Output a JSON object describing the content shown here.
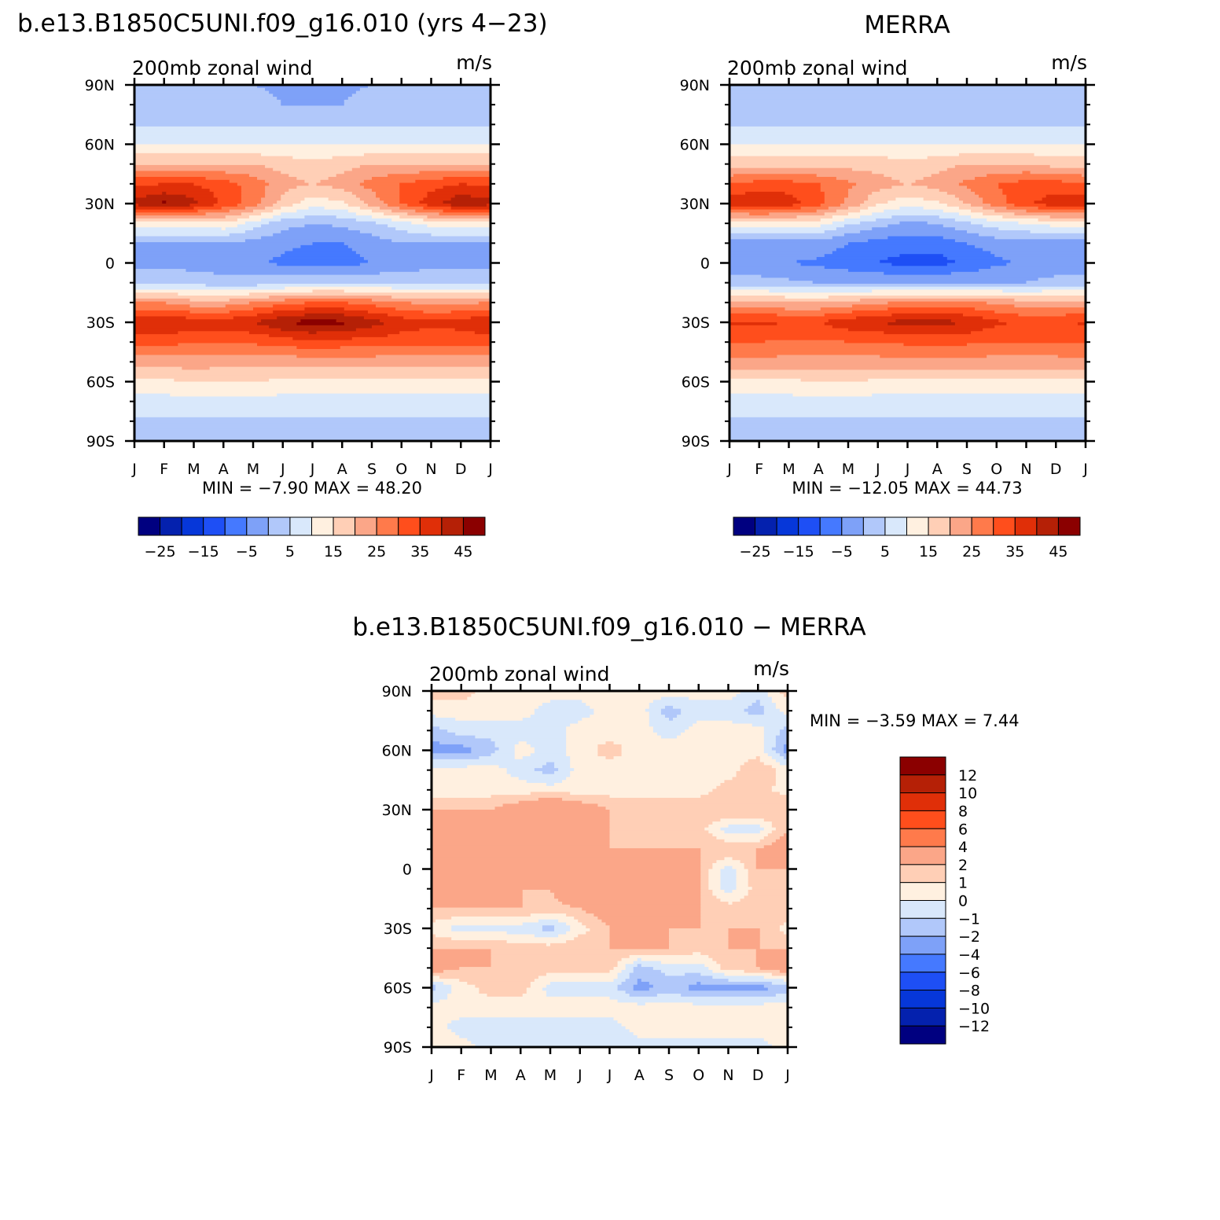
{
  "chart_data": [
    {
      "type": "heatmap",
      "title": "b.e13.B1850C5UNI.f09_g16.010 (yrs 4−23)",
      "left_label": "200mb zonal wind",
      "right_label": "m/s",
      "x_ticks": [
        "J",
        "F",
        "M",
        "A",
        "M",
        "J",
        "J",
        "A",
        "S",
        "O",
        "N",
        "D",
        "J"
      ],
      "y_ticks": [
        "90N",
        "60N",
        "30N",
        "0",
        "30S",
        "60S",
        "90S"
      ],
      "y_range": [
        -90,
        90
      ],
      "min_max_text": "MIN =    −7.90  MAX =    48.20",
      "levels": [
        -30,
        -25,
        -20,
        -15,
        -10,
        -5,
        0,
        5,
        10,
        15,
        20,
        25,
        30,
        35,
        40,
        45
      ],
      "colorbar_labels": [
        "−25",
        "−15",
        "−5",
        "5",
        "15",
        "25",
        "35",
        "45"
      ],
      "colors": [
        "#000080",
        "#0421ae",
        "#0637d9",
        "#1e4ff5",
        "#4579ff",
        "#7ea1f8",
        "#b1c8fa",
        "#d9e8fb",
        "#fff0e0",
        "#ffcfb6",
        "#fba688",
        "#ff7a4b",
        "#ff4e1c",
        "#e02f08",
        "#b52006",
        "#8b0000"
      ],
      "profile_lat": [
        -90,
        -80,
        -70,
        -60,
        -50,
        -40,
        -30,
        -20,
        -10,
        0,
        10,
        20,
        30,
        40,
        50,
        60,
        70,
        80,
        90
      ],
      "profiles": [
        [
          0,
          4,
          8,
          14,
          22,
          32,
          40,
          25,
          4,
          -2,
          0,
          12,
          42,
          34,
          20,
          10,
          4,
          2,
          0
        ],
        [
          0,
          4,
          8,
          14,
          22,
          32,
          40,
          25,
          4,
          -2,
          0,
          12,
          46,
          35,
          20,
          10,
          4,
          2,
          0
        ],
        [
          0,
          4,
          8,
          15,
          23,
          30,
          38,
          22,
          3,
          -2,
          0,
          12,
          42,
          35,
          20,
          10,
          4,
          2,
          0
        ],
        [
          0,
          4,
          8,
          15,
          22,
          30,
          38,
          22,
          2,
          -3,
          0,
          14,
          34,
          32,
          20,
          10,
          4,
          2,
          0
        ],
        [
          0,
          4,
          8,
          15,
          22,
          31,
          40,
          25,
          2,
          -4,
          -2,
          8,
          28,
          28,
          20,
          10,
          4,
          2,
          0
        ],
        [
          0,
          4,
          8,
          14,
          22,
          32,
          45,
          28,
          3,
          -6,
          -4,
          2,
          18,
          22,
          18,
          10,
          4,
          0,
          -1
        ],
        [
          0,
          4,
          8,
          14,
          22,
          34,
          47,
          30,
          4,
          -7,
          -5,
          0,
          12,
          20,
          16,
          10,
          4,
          0,
          -1
        ],
        [
          0,
          4,
          8,
          14,
          22,
          33,
          46,
          30,
          4,
          -7,
          -5,
          1,
          14,
          22,
          18,
          10,
          4,
          0,
          -1
        ],
        [
          0,
          4,
          8,
          14,
          22,
          33,
          42,
          28,
          4,
          -5,
          -3,
          4,
          22,
          27,
          20,
          10,
          4,
          2,
          0
        ],
        [
          0,
          4,
          8,
          14,
          22,
          32,
          38,
          25,
          4,
          -3,
          0,
          8,
          30,
          30,
          20,
          10,
          4,
          2,
          0
        ],
        [
          0,
          4,
          8,
          14,
          22,
          32,
          36,
          24,
          4,
          -2,
          0,
          12,
          38,
          33,
          20,
          10,
          4,
          2,
          0
        ],
        [
          0,
          4,
          8,
          14,
          22,
          32,
          37,
          24,
          4,
          -2,
          0,
          12,
          44,
          35,
          20,
          10,
          4,
          2,
          0
        ],
        [
          0,
          4,
          8,
          14,
          22,
          32,
          40,
          25,
          4,
          -2,
          0,
          12,
          42,
          34,
          20,
          10,
          4,
          2,
          0
        ]
      ]
    },
    {
      "type": "heatmap",
      "title": "MERRA",
      "left_label": "200mb zonal wind",
      "right_label": "m/s",
      "x_ticks": [
        "J",
        "F",
        "M",
        "A",
        "M",
        "J",
        "J",
        "A",
        "S",
        "O",
        "N",
        "D",
        "J"
      ],
      "y_ticks": [
        "90N",
        "60N",
        "30N",
        "0",
        "30S",
        "60S",
        "90S"
      ],
      "y_range": [
        -90,
        90
      ],
      "min_max_text": "MIN = −12.05  MAX =    44.73",
      "levels": [
        -30,
        -25,
        -20,
        -15,
        -10,
        -5,
        0,
        5,
        10,
        15,
        20,
        25,
        30,
        35,
        40,
        45
      ],
      "colorbar_labels": [
        "−25",
        "−15",
        "−5",
        "5",
        "15",
        "25",
        "35",
        "45"
      ],
      "colors": [
        "#000080",
        "#0421ae",
        "#0637d9",
        "#1e4ff5",
        "#4579ff",
        "#7ea1f8",
        "#b1c8fa",
        "#d9e8fb",
        "#fff0e0",
        "#ffcfb6",
        "#fba688",
        "#ff7a4b",
        "#ff4e1c",
        "#e02f08",
        "#b52006",
        "#8b0000"
      ],
      "profile_lat": [
        -90,
        -80,
        -70,
        -60,
        -50,
        -40,
        -30,
        -20,
        -10,
        0,
        10,
        20,
        30,
        40,
        50,
        60,
        70,
        80,
        90
      ],
      "profiles": [
        [
          0,
          4,
          8,
          14,
          24,
          30,
          36,
          22,
          2,
          -4,
          -2,
          12,
          38,
          30,
          18,
          10,
          4,
          2,
          0
        ],
        [
          0,
          4,
          8,
          14,
          24,
          30,
          36,
          22,
          2,
          -4,
          -2,
          12,
          40,
          32,
          18,
          10,
          4,
          2,
          0
        ],
        [
          0,
          4,
          8,
          14,
          23,
          29,
          35,
          20,
          1,
          -5,
          -2,
          12,
          38,
          32,
          18,
          10,
          4,
          2,
          0
        ],
        [
          0,
          4,
          8,
          15,
          23,
          29,
          35,
          20,
          0,
          -6,
          -2,
          12,
          32,
          30,
          18,
          10,
          4,
          2,
          0
        ],
        [
          0,
          4,
          8,
          15,
          23,
          30,
          38,
          22,
          0,
          -8,
          -5,
          6,
          24,
          26,
          18,
          10,
          4,
          2,
          0
        ],
        [
          0,
          4,
          8,
          14,
          23,
          30,
          40,
          24,
          0,
          -10,
          -7,
          2,
          16,
          22,
          18,
          10,
          4,
          2,
          0
        ],
        [
          0,
          4,
          8,
          14,
          24,
          31,
          42,
          26,
          0,
          -12,
          -8,
          -1,
          12,
          20,
          16,
          10,
          4,
          2,
          0
        ],
        [
          0,
          4,
          8,
          14,
          24,
          31,
          42,
          26,
          0,
          -12,
          -8,
          0,
          14,
          22,
          18,
          10,
          4,
          2,
          0
        ],
        [
          0,
          4,
          8,
          14,
          23,
          31,
          40,
          26,
          0,
          -9,
          -5,
          4,
          20,
          26,
          20,
          10,
          4,
          2,
          0
        ],
        [
          0,
          4,
          8,
          14,
          23,
          30,
          36,
          24,
          0,
          -6,
          -3,
          8,
          28,
          30,
          20,
          10,
          4,
          2,
          0
        ],
        [
          0,
          4,
          8,
          14,
          23,
          30,
          34,
          22,
          0,
          -4,
          -2,
          10,
          34,
          32,
          20,
          10,
          4,
          2,
          0
        ],
        [
          0,
          4,
          8,
          14,
          23,
          30,
          34,
          22,
          2,
          -4,
          -2,
          12,
          38,
          32,
          18,
          10,
          4,
          2,
          0
        ],
        [
          0,
          4,
          8,
          14,
          24,
          30,
          36,
          22,
          2,
          -4,
          -2,
          12,
          38,
          30,
          18,
          10,
          4,
          2,
          0
        ]
      ]
    },
    {
      "type": "heatmap",
      "title": "b.e13.B1850C5UNI.f09_g16.010 − MERRA",
      "left_label": "200mb zonal wind",
      "right_label": "m/s",
      "x_ticks": [
        "J",
        "F",
        "M",
        "A",
        "M",
        "J",
        "J",
        "A",
        "S",
        "O",
        "N",
        "D",
        "J"
      ],
      "y_ticks": [
        "90N",
        "60N",
        "30N",
        "0",
        "30S",
        "60S",
        "90S"
      ],
      "y_range": [
        -90,
        90
      ],
      "min_max_text": "MIN =    −3.59  MAX =     7.44",
      "levels": [
        -14,
        -12,
        -10,
        -8,
        -6,
        -4,
        -2,
        -1,
        0,
        1,
        2,
        4,
        6,
        8,
        10,
        12
      ],
      "colorbar_labels": [
        "12",
        "10",
        "8",
        "6",
        "4",
        "2",
        "1",
        "0",
        "−1",
        "−2",
        "−4",
        "−6",
        "−8",
        "−10",
        "−12"
      ],
      "colors": [
        "#000080",
        "#0421ae",
        "#0637d9",
        "#1e4ff5",
        "#4579ff",
        "#7ea1f8",
        "#b1c8fa",
        "#d9e8fb",
        "#fff0e0",
        "#ffcfb6",
        "#fba688",
        "#ff7a4b",
        "#ff4e1c",
        "#e02f08",
        "#b52006",
        "#8b0000"
      ],
      "profile_lat": [
        -90,
        -80,
        -70,
        -60,
        -50,
        -40,
        -30,
        -20,
        -10,
        0,
        10,
        20,
        30,
        40,
        50,
        60,
        70,
        80,
        90
      ],
      "profiles": [
        [
          0.5,
          0.5,
          0.5,
          -1.5,
          3,
          2,
          0.5,
          2,
          2,
          2,
          3,
          2,
          2,
          0.5,
          0.5,
          -2.5,
          -1.5,
          0.5,
          1.5
        ],
        [
          0.5,
          -0.5,
          0.5,
          0.5,
          2,
          2,
          -0.5,
          2,
          2,
          2,
          3,
          2,
          2,
          0.5,
          0.5,
          -2.5,
          -0.5,
          0.5,
          1.5
        ],
        [
          -0.5,
          -0.5,
          0.5,
          1.5,
          2,
          2,
          -0.5,
          2,
          2,
          3,
          3,
          3,
          2,
          0.5,
          0.5,
          -1.5,
          -0.5,
          0.5,
          0.5
        ],
        [
          -0.5,
          -0.5,
          0.5,
          1.5,
          2,
          1.5,
          -0.5,
          2,
          2,
          2,
          3,
          3,
          3,
          0.5,
          -0.5,
          0.5,
          -0.5,
          0.5,
          0.5
        ],
        [
          -0.5,
          -0.5,
          0.5,
          -0.5,
          1.5,
          1.5,
          -1.5,
          1.5,
          2,
          3,
          3,
          4,
          4,
          0.5,
          -1.5,
          -0.5,
          -0.5,
          -0.5,
          0.5
        ],
        [
          -0.5,
          -0.5,
          0.5,
          -0.5,
          1.5,
          2,
          0.5,
          2,
          4,
          3,
          2,
          3,
          3,
          0.5,
          0.5,
          0.5,
          0.5,
          -0.5,
          0.5
        ],
        [
          -0.5,
          -0.5,
          0.5,
          -0.5,
          1.5,
          2,
          2,
          3,
          4,
          4,
          2,
          2,
          2,
          0.5,
          0.5,
          1.5,
          0.5,
          0.5,
          0.5
        ],
        [
          -0.5,
          0.5,
          0.5,
          -2.5,
          -1.5,
          2,
          2,
          2,
          3,
          4,
          2,
          1.5,
          2,
          0.5,
          0.5,
          0.5,
          0.5,
          0.5,
          0.5
        ],
        [
          -0.5,
          0.5,
          0.5,
          -1.5,
          -0.5,
          2,
          2,
          2,
          2,
          3,
          2,
          1.5,
          2,
          0.5,
          0.5,
          0.5,
          -0.5,
          -1.5,
          0.5
        ],
        [
          -0.5,
          0.5,
          0.5,
          -2.5,
          -0.5,
          1.5,
          2,
          2,
          2,
          2,
          2,
          1.5,
          2,
          0.5,
          0.5,
          0.5,
          0.5,
          -0.5,
          0.5
        ],
        [
          -0.5,
          0.5,
          0.5,
          -2.5,
          1.5,
          2,
          2,
          1.5,
          -0.5,
          -0.5,
          2,
          -0.5,
          2,
          1.5,
          0.5,
          0.5,
          0.5,
          -0.5,
          0.5
        ],
        [
          -0.5,
          0.5,
          0.5,
          -2.5,
          2,
          2,
          2,
          1.5,
          1.5,
          2,
          2,
          -0.5,
          2,
          1.5,
          2,
          0.5,
          0.5,
          -1.5,
          -0.5
        ],
        [
          0.5,
          0.5,
          0.5,
          -1.5,
          3,
          2,
          0.5,
          2,
          2,
          2,
          3,
          2,
          2,
          0.5,
          0.5,
          -2.5,
          -1.5,
          0.5,
          1.5
        ]
      ]
    }
  ]
}
